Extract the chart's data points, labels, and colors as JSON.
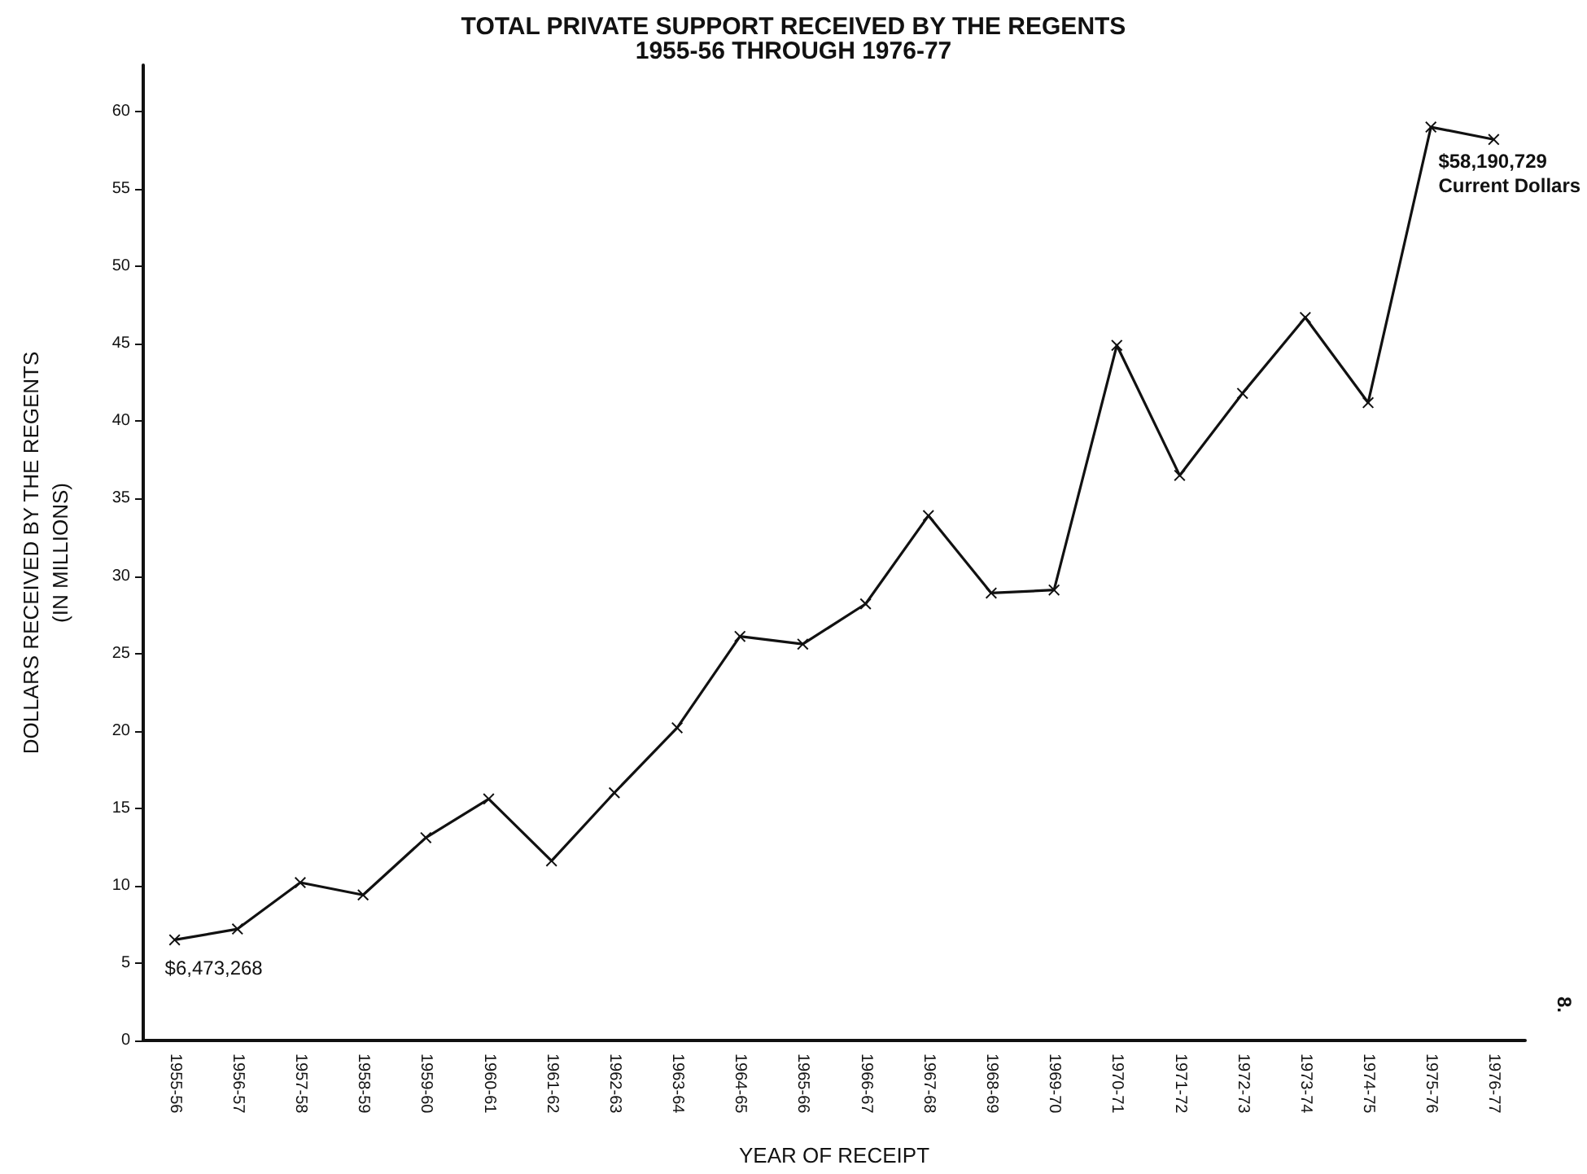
{
  "chart_data": {
    "type": "line",
    "title": "TOTAL PRIVATE SUPPORT RECEIVED BY THE REGENTS",
    "subtitle": "1955-56 THROUGH 1976-77",
    "xlabel": "YEAR OF RECEIPT",
    "ylabel": "DOLLARS RECEIVED BY THE REGENTS\n(IN MILLIONS)",
    "categories": [
      "1955-56",
      "1956-57",
      "1957-58",
      "1958-59",
      "1959-60",
      "1960-61",
      "1961-62",
      "1962-63",
      "1963-64",
      "1964-65",
      "1965-66",
      "1966-67",
      "1967-68",
      "1968-69",
      "1969-70",
      "1970-71",
      "1971-72",
      "1972-73",
      "1973-74",
      "1974-75",
      "1975-76",
      "1976-77"
    ],
    "series": [
      {
        "color": "#111111",
        "values": [
          6.5,
          7.2,
          10.2,
          9.4,
          13.1,
          15.6,
          11.6,
          16.0,
          20.2,
          26.1,
          25.6,
          28.2,
          33.9,
          28.9,
          29.1,
          44.9,
          36.5,
          41.8,
          46.7,
          41.2,
          59.0,
          58.2
        ]
      }
    ],
    "ylim": [
      0,
      63
    ],
    "yticks": [
      0,
      5,
      10,
      15,
      20,
      25,
      30,
      35,
      40,
      45,
      50,
      55,
      60
    ],
    "grid": false,
    "marker": "cross",
    "line_style": "solid",
    "annotations": [
      {
        "text": "$6,473,268",
        "x": "1955-56",
        "y": 6.5
      },
      {
        "text": "$58,190,729\nCurrent Dollars",
        "x": "1976-77",
        "y": 58.2
      },
      "8."
    ]
  }
}
